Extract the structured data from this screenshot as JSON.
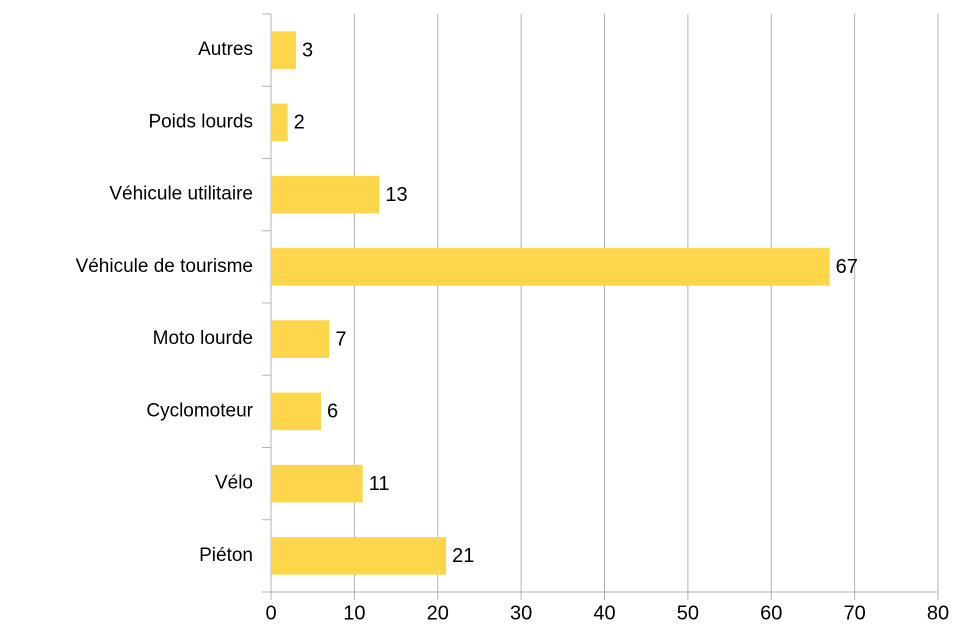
{
  "chart_data": {
    "type": "bar",
    "orientation": "horizontal",
    "categories": [
      "Piéton",
      "Vélo",
      "Cyclomoteur",
      "Moto lourde",
      "Véhicule de tourisme",
      "Véhicule utilitaire",
      "Poids lourds",
      "Autres"
    ],
    "values": [
      21,
      11,
      6,
      7,
      67,
      13,
      2,
      3
    ],
    "color": "#fdd64b",
    "xlim": [
      0,
      80
    ],
    "xticks": [
      0,
      10,
      20,
      30,
      40,
      50,
      60,
      70,
      80
    ],
    "grid": true
  }
}
